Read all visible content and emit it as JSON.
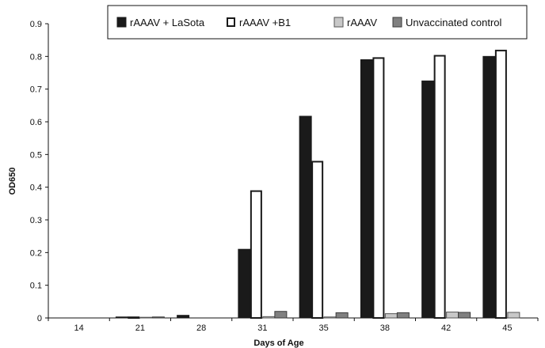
{
  "chart_data": {
    "type": "bar",
    "title": "",
    "xlabel": "Days of Age",
    "ylabel": "OD650",
    "ylim": [
      0,
      0.9
    ],
    "yticks": [
      "0",
      "0.1",
      "0.2",
      "0.3",
      "0.4",
      "0.5",
      "0.6",
      "0.7",
      "0.8",
      "0.9"
    ],
    "grid": false,
    "legend_position": "top",
    "categories": [
      "14",
      "21",
      "28",
      "31",
      "35",
      "38",
      "42",
      "45"
    ],
    "series": [
      {
        "name": "rAAAV + LaSota",
        "fill": "#1a1a1a",
        "stroke": "#1a1a1a",
        "values": [
          0.0,
          0.003,
          0.008,
          0.21,
          0.617,
          0.79,
          0.725,
          0.8
        ]
      },
      {
        "name": "rAAAV +B1",
        "fill": "#ffffff",
        "stroke": "#1a1a1a",
        "values": [
          0.0,
          0.002,
          0.0,
          0.388,
          0.478,
          0.795,
          0.802,
          0.818
        ]
      },
      {
        "name": "rAAAV",
        "fill": "#c8c8c8",
        "stroke": "#555555",
        "values": [
          0.0,
          0.002,
          0.0,
          0.004,
          0.003,
          0.013,
          0.018,
          0.017
        ]
      },
      {
        "name": "Unvaccinated control",
        "fill": "#808080",
        "stroke": "#3a3a3a",
        "values": [
          0.0,
          0.003,
          0.0,
          0.02,
          0.016,
          0.016,
          0.017,
          0.0
        ]
      }
    ]
  }
}
